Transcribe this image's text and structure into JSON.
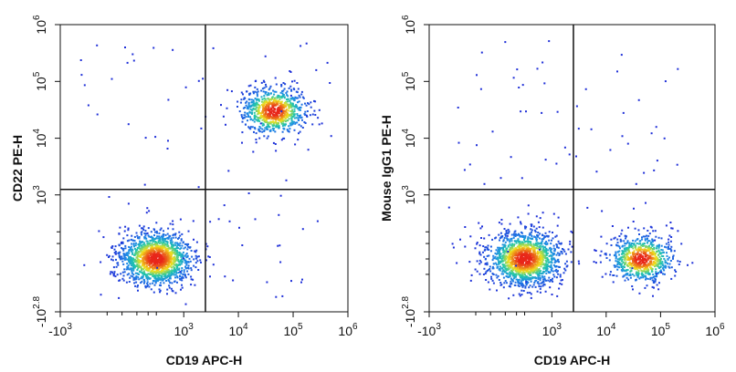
{
  "chart_data": [
    {
      "type": "scatter",
      "subtype": "flow-cytometry-density-plot",
      "title": "",
      "xlabel": "CD19 APC-H",
      "ylabel": "CD22 PE-H",
      "x_scale": "biexponential",
      "y_scale": "biexponential",
      "xlim": [
        -1000,
        1000000
      ],
      "ylim": [
        -631,
        1000000
      ],
      "x_tick_labels": [
        {
          "value": -1000,
          "base": "-10",
          "exp": "3"
        },
        {
          "value": 1000,
          "base": "10",
          "exp": "3"
        },
        {
          "value": 10000,
          "base": "10",
          "exp": "4"
        },
        {
          "value": 100000,
          "base": "10",
          "exp": "5"
        },
        {
          "value": 1000000,
          "base": "10",
          "exp": "6"
        }
      ],
      "y_tick_labels": [
        {
          "value": -631,
          "base": "-10",
          "exp": "2.8"
        },
        {
          "value": 1000,
          "base": "10",
          "exp": "3"
        },
        {
          "value": 10000,
          "base": "10",
          "exp": "4"
        },
        {
          "value": 100000,
          "base": "10",
          "exp": "5"
        },
        {
          "value": 1000000,
          "base": "10",
          "exp": "6"
        }
      ],
      "gates": {
        "x_threshold": 2500,
        "y_threshold": 1250
      },
      "populations": [
        {
          "name": "CD19- CD22-",
          "x_center": 300,
          "y_center": 0,
          "relative_size": 1.0
        },
        {
          "name": "CD19+ CD22+",
          "x_center": 45000,
          "y_center": 30000,
          "relative_size": 0.55
        }
      ]
    },
    {
      "type": "scatter",
      "subtype": "flow-cytometry-density-plot",
      "title": "",
      "xlabel": "CD19 APC-H",
      "ylabel": "Mouse IgG1 PE-H",
      "x_scale": "biexponential",
      "y_scale": "biexponential",
      "xlim": [
        -1000,
        1000000
      ],
      "ylim": [
        -631,
        1000000
      ],
      "x_tick_labels": [
        {
          "value": -1000,
          "base": "-10",
          "exp": "3"
        },
        {
          "value": 1000,
          "base": "10",
          "exp": "3"
        },
        {
          "value": 10000,
          "base": "10",
          "exp": "4"
        },
        {
          "value": 100000,
          "base": "10",
          "exp": "5"
        },
        {
          "value": 1000000,
          "base": "10",
          "exp": "6"
        }
      ],
      "y_tick_labels": [
        {
          "value": -631,
          "base": "-10",
          "exp": "2.8"
        },
        {
          "value": 1000,
          "base": "10",
          "exp": "3"
        },
        {
          "value": 10000,
          "base": "10",
          "exp": "4"
        },
        {
          "value": 100000,
          "base": "10",
          "exp": "5"
        },
        {
          "value": 1000000,
          "base": "10",
          "exp": "6"
        }
      ],
      "gates": {
        "x_threshold": 2500,
        "y_threshold": 1250
      },
      "populations": [
        {
          "name": "CD19- IgG1-",
          "x_center": 300,
          "y_center": 0,
          "relative_size": 1.0
        },
        {
          "name": "CD19+ IgG1-",
          "x_center": 45000,
          "y_center": 0,
          "relative_size": 0.5
        }
      ]
    }
  ],
  "colors": {
    "density_low": "#1f2fd8",
    "density_mid": "#20c8a8",
    "density_high_mid": "#f2e21c",
    "density_high": "#e8261a",
    "axis": "#111111"
  }
}
